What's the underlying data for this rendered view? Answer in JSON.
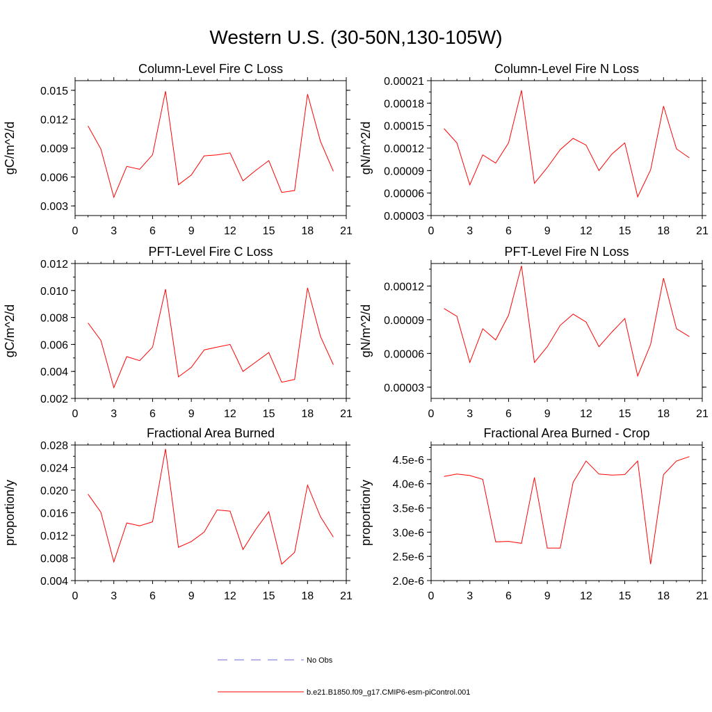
{
  "figure": {
    "title": "Western U.S. (30-50N,130-105W)",
    "legend": [
      {
        "label": "No Obs",
        "color": "#6b6bd6",
        "style": "dashed"
      },
      {
        "label": "b.e21.B1850.f09_g17.CMIP6-esm-piControl.001",
        "color": "#ff0000",
        "style": "solid"
      }
    ]
  },
  "chart_data": [
    {
      "type": "line",
      "title": "Column-Level Fire C Loss",
      "ylabel": "gC/m^2/d",
      "xlim": [
        0,
        21
      ],
      "ylim": [
        0.002,
        0.016
      ],
      "xticks": [
        0,
        3,
        6,
        9,
        12,
        15,
        18,
        21
      ],
      "yticks": [
        0.003,
        0.006,
        0.009,
        0.012,
        0.015
      ],
      "ytick_labels": [
        "0.003",
        "0.006",
        "0.009",
        "0.012",
        "0.015"
      ],
      "series": [
        {
          "name": "b.e21.B1850.f09_g17.CMIP6-esm-piControl.001",
          "color": "#ff0000",
          "x": [
            1,
            2,
            3,
            4,
            5,
            6,
            7,
            8,
            9,
            10,
            11,
            12,
            13,
            14,
            15,
            16,
            17,
            18,
            19,
            20
          ],
          "values": [
            0.0113,
            0.0089,
            0.0039,
            0.0071,
            0.0068,
            0.0083,
            0.0149,
            0.0052,
            0.0062,
            0.0082,
            0.0083,
            0.0085,
            0.0056,
            0.0067,
            0.0077,
            0.0044,
            0.0046,
            0.0146,
            0.0097,
            0.0066
          ]
        }
      ]
    },
    {
      "type": "line",
      "title": "Column-Level Fire N Loss",
      "ylabel": "gN/m^2/d",
      "xlim": [
        0,
        21
      ],
      "ylim": [
        3e-05,
        0.00021
      ],
      "xticks": [
        0,
        3,
        6,
        9,
        12,
        15,
        18,
        21
      ],
      "yticks": [
        3e-05,
        6e-05,
        9e-05,
        0.00012,
        0.00015,
        0.00018,
        0.00021
      ],
      "ytick_labels": [
        "0.00003",
        "0.00006",
        "0.00009",
        "0.00012",
        "0.00015",
        "0.00018",
        "0.00021"
      ],
      "series": [
        {
          "name": "b.e21.B1850.f09_g17.CMIP6-esm-piControl.001",
          "color": "#ff0000",
          "x": [
            1,
            2,
            3,
            4,
            5,
            6,
            7,
            8,
            9,
            10,
            11,
            12,
            13,
            14,
            15,
            16,
            17,
            18,
            19,
            20
          ],
          "values": [
            0.000146,
            0.000127,
            7.1e-05,
            0.000111,
            0.0001,
            0.000127,
            0.000197,
            7.3e-05,
            9.4e-05,
            0.000118,
            0.000133,
            0.000124,
            9e-05,
            0.000112,
            0.000127,
            5.5e-05,
            9.1e-05,
            0.000176,
            0.000119,
            0.000107
          ]
        }
      ]
    },
    {
      "type": "line",
      "title": "PFT-Level Fire C Loss",
      "ylabel": "gC/m^2/d",
      "xlim": [
        0,
        21
      ],
      "ylim": [
        0.002,
        0.012
      ],
      "xticks": [
        0,
        3,
        6,
        9,
        12,
        15,
        18,
        21
      ],
      "yticks": [
        0.002,
        0.004,
        0.006,
        0.008,
        0.01,
        0.012
      ],
      "ytick_labels": [
        "0.002",
        "0.004",
        "0.006",
        "0.008",
        "0.010",
        "0.012"
      ],
      "series": [
        {
          "name": "b.e21.B1850.f09_g17.CMIP6-esm-piControl.001",
          "color": "#ff0000",
          "x": [
            1,
            2,
            3,
            4,
            5,
            6,
            7,
            8,
            9,
            10,
            11,
            12,
            13,
            14,
            15,
            16,
            17,
            18,
            19,
            20
          ],
          "values": [
            0.0076,
            0.0063,
            0.0028,
            0.0051,
            0.0048,
            0.0058,
            0.0101,
            0.0036,
            0.0043,
            0.0056,
            0.0058,
            0.006,
            0.004,
            0.0047,
            0.0054,
            0.0032,
            0.0034,
            0.0102,
            0.0066,
            0.0045
          ]
        }
      ]
    },
    {
      "type": "line",
      "title": "PFT-Level Fire N Loss",
      "ylabel": "gN/m^2/d",
      "xlim": [
        0,
        21
      ],
      "ylim": [
        2e-05,
        0.00014
      ],
      "xticks": [
        0,
        3,
        6,
        9,
        12,
        15,
        18,
        21
      ],
      "yticks": [
        3e-05,
        6e-05,
        9e-05,
        0.00012
      ],
      "ytick_labels": [
        "0.00003",
        "0.00006",
        "0.00009",
        "0.00012"
      ],
      "series": [
        {
          "name": "b.e21.B1850.f09_g17.CMIP6-esm-piControl.001",
          "color": "#ff0000",
          "x": [
            1,
            2,
            3,
            4,
            5,
            6,
            7,
            8,
            9,
            10,
            11,
            12,
            13,
            14,
            15,
            16,
            17,
            18,
            19,
            20
          ],
          "values": [
            0.0001,
            9.3e-05,
            5.2e-05,
            8.2e-05,
            7.2e-05,
            9.4e-05,
            0.000138,
            5.2e-05,
            6.6e-05,
            8.5e-05,
            9.5e-05,
            8.8e-05,
            6.6e-05,
            7.9e-05,
            9.1e-05,
            4e-05,
            6.8e-05,
            0.000127,
            8.2e-05,
            7.5e-05
          ]
        }
      ]
    },
    {
      "type": "line",
      "title": "Fractional Area Burned",
      "ylabel": "proportion/y",
      "xlim": [
        0,
        21
      ],
      "ylim": [
        0.004,
        0.028
      ],
      "xticks": [
        0,
        3,
        6,
        9,
        12,
        15,
        18,
        21
      ],
      "yticks": [
        0.004,
        0.008,
        0.012,
        0.016,
        0.02,
        0.024,
        0.028
      ],
      "ytick_labels": [
        "0.004",
        "0.008",
        "0.012",
        "0.016",
        "0.020",
        "0.024",
        "0.028"
      ],
      "series": [
        {
          "name": "b.e21.B1850.f09_g17.CMIP6-esm-piControl.001",
          "color": "#ff0000",
          "x": [
            1,
            2,
            3,
            4,
            5,
            6,
            7,
            8,
            9,
            10,
            11,
            12,
            13,
            14,
            15,
            16,
            17,
            18,
            19,
            20
          ],
          "values": [
            0.0193,
            0.0161,
            0.0073,
            0.0142,
            0.0137,
            0.0144,
            0.0273,
            0.0099,
            0.0109,
            0.0126,
            0.0165,
            0.0163,
            0.0095,
            0.0131,
            0.0162,
            0.0069,
            0.009,
            0.0209,
            0.0153,
            0.0117
          ]
        }
      ]
    },
    {
      "type": "line",
      "title": "Fractional Area Burned - Crop",
      "ylabel": "proportion/y",
      "xlim": [
        0,
        21
      ],
      "ylim": [
        2e-06,
        4.8e-06
      ],
      "xticks": [
        0,
        3,
        6,
        9,
        12,
        15,
        18,
        21
      ],
      "yticks": [
        2e-06,
        2.5e-06,
        3e-06,
        3.5e-06,
        4e-06,
        4.5e-06
      ],
      "ytick_labels": [
        "2.0e-6",
        "2.5e-6",
        "3.0e-6",
        "3.5e-6",
        "4.0e-6",
        "4.5e-6"
      ],
      "series": [
        {
          "name": "b.e21.B1850.f09_g17.CMIP6-esm-piControl.001",
          "color": "#ff0000",
          "x": [
            1,
            2,
            3,
            4,
            5,
            6,
            7,
            8,
            9,
            10,
            11,
            12,
            13,
            14,
            15,
            16,
            17,
            18,
            19,
            20
          ],
          "values": [
            4.15e-06,
            4.2e-06,
            4.17e-06,
            4.09e-06,
            2.8e-06,
            2.81e-06,
            2.77e-06,
            4.13e-06,
            2.67e-06,
            2.67e-06,
            4.03e-06,
            4.47e-06,
            4.2e-06,
            4.18e-06,
            4.19e-06,
            4.47e-06,
            2.34e-06,
            4.19e-06,
            4.47e-06,
            4.56e-06
          ]
        }
      ]
    }
  ]
}
